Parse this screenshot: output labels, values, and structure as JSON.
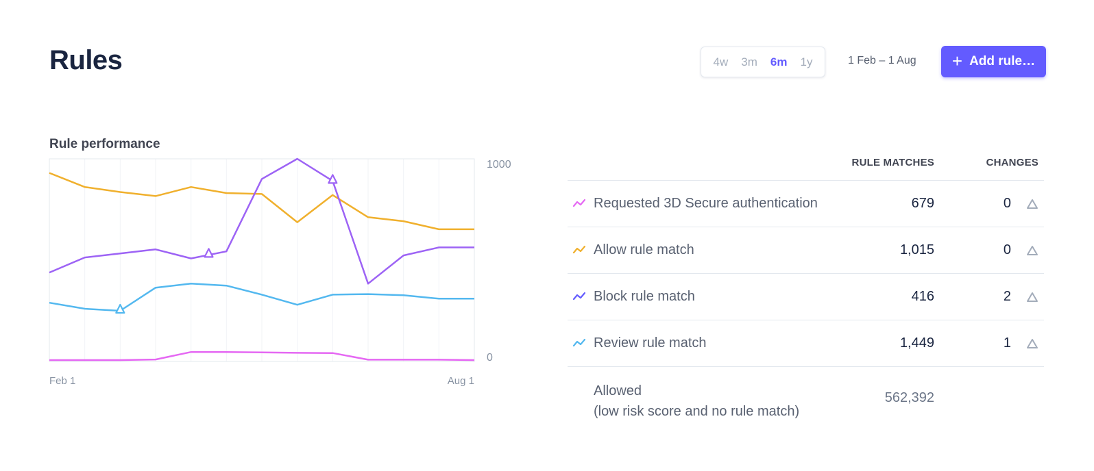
{
  "header": {
    "title": "Rules",
    "ranges": [
      {
        "label": "4w",
        "active": false
      },
      {
        "label": "3m",
        "active": false
      },
      {
        "label": "6m",
        "active": true
      },
      {
        "label": "1y",
        "active": false
      }
    ],
    "date_range": "1 Feb – 1 Aug",
    "add_button": "Add rule…",
    "accent_color": "#635bff"
  },
  "chart": {
    "title": "Rule performance",
    "y_top_label": "1000",
    "y_bottom_label": "0",
    "x_start_label": "Feb 1",
    "x_end_label": "Aug 1"
  },
  "chart_data": {
    "type": "line",
    "title": "Rule performance",
    "xlabel": "",
    "ylabel": "",
    "x_tick_labels": [
      "Feb 1",
      "Aug 1"
    ],
    "ylim": [
      0,
      1000
    ],
    "grid": true,
    "series": [
      {
        "name": "Requested 3D Secure authentication",
        "color": "#e568f3",
        "values": [
          0,
          0,
          0,
          3,
          40,
          40,
          38,
          36,
          35,
          2,
          2,
          2,
          0
        ]
      },
      {
        "name": "Allow rule match",
        "color": "#f0b02d",
        "values": [
          930,
          860,
          835,
          815,
          860,
          830,
          825,
          685,
          820,
          710,
          690,
          650,
          650
        ]
      },
      {
        "name": "Block rule match",
        "color": "#9d63f5",
        "values": [
          435,
          510,
          530,
          550,
          505,
          540,
          900,
          1000,
          890,
          380,
          520,
          560,
          560
        ]
      },
      {
        "name": "Review rule match",
        "color": "#53b8ef",
        "values": [
          285,
          255,
          245,
          360,
          380,
          370,
          325,
          275,
          325,
          328,
          322,
          305,
          305
        ]
      }
    ],
    "markers": [
      {
        "series": "Review rule match",
        "index": 2
      },
      {
        "series": "Block rule match",
        "index": 4.5
      },
      {
        "series": "Block rule match",
        "index": 8
      }
    ]
  },
  "table": {
    "col_matches": "RULE MATCHES",
    "col_changes": "CHANGES",
    "rows": [
      {
        "label": "Requested 3D Secure authentication",
        "matches": "679",
        "changes": "0",
        "color": "#e568f3",
        "icon": "trend-icon"
      },
      {
        "label": "Allow rule match",
        "matches": "1,015",
        "changes": "0",
        "color": "#f0b02d",
        "icon": "trend-icon"
      },
      {
        "label": "Block rule match",
        "matches": "416",
        "changes": "2",
        "color": "#635bff",
        "icon": "trend-icon"
      },
      {
        "label": "Review rule match",
        "matches": "1,449",
        "changes": "1",
        "color": "#53b8ef",
        "icon": "trend-icon"
      }
    ],
    "allowed": {
      "label_line1": "Allowed",
      "label_line2": "(low risk score and no rule match)",
      "value": "562,392"
    }
  }
}
